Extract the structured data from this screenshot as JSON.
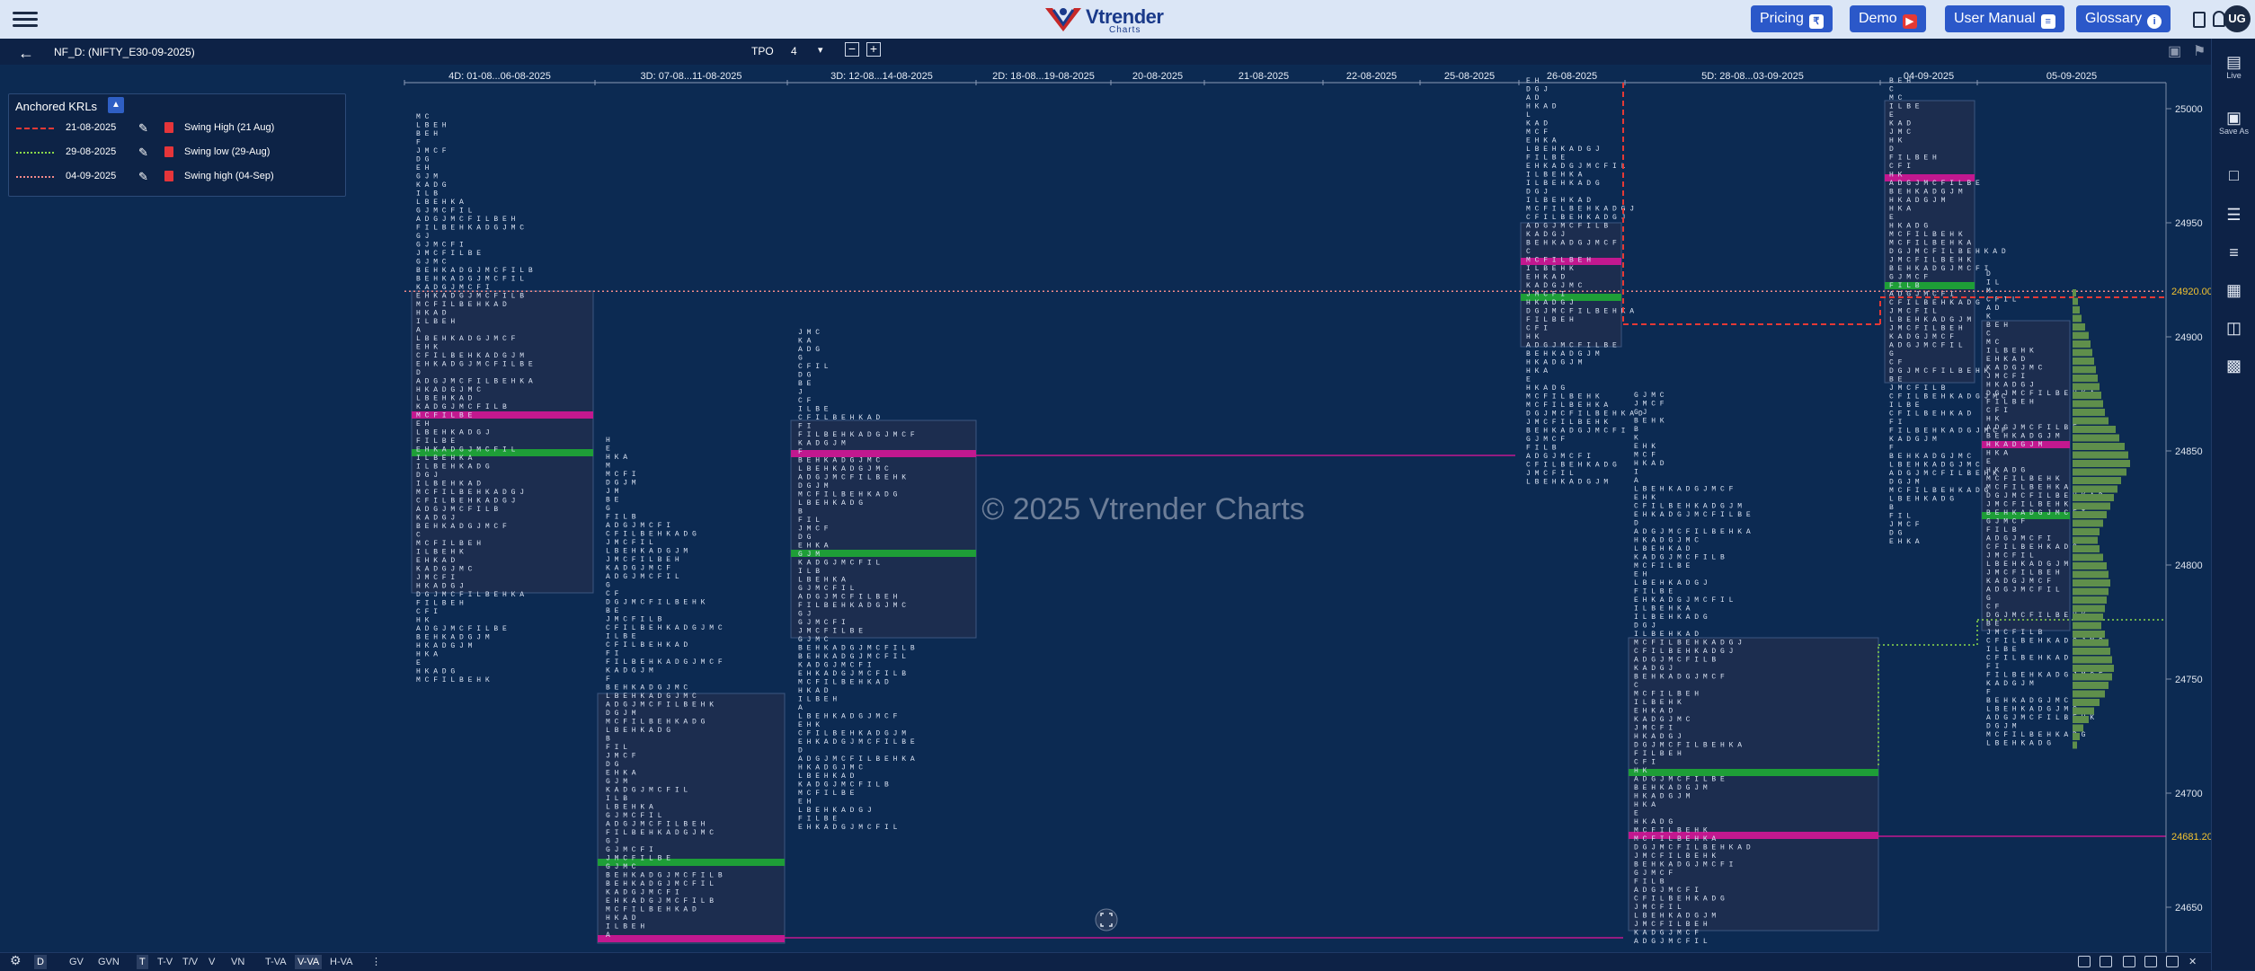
{
  "topbar": {
    "brand_name": "Vtrender",
    "brand_sub": "Charts",
    "buttons": [
      {
        "label": "Pricing",
        "icon": "rupee-icon",
        "glyph": "₹"
      },
      {
        "label": "Demo",
        "icon": "youtube-icon",
        "glyph": "▶"
      },
      {
        "label": "User Manual",
        "icon": "document-icon",
        "glyph": "≡"
      },
      {
        "label": "Glossary",
        "icon": "info-icon",
        "glyph": "i"
      }
    ],
    "avatar": "UG"
  },
  "subbar": {
    "symbol": "NF_D: (NIFTY_E30-09-2025)",
    "tpo_label": "TPO",
    "tpo_value": "4"
  },
  "right_panel": {
    "items": [
      {
        "label": "Live",
        "icon": "live-icon"
      },
      {
        "label": "Save As",
        "icon": "save-as-icon"
      },
      {
        "label": "",
        "icon": "square-icon"
      },
      {
        "label": "",
        "icon": "list-icon"
      },
      {
        "label": "",
        "icon": "lines-icon"
      },
      {
        "label": "",
        "icon": "grid-icon"
      },
      {
        "label": "",
        "icon": "columns-icon"
      },
      {
        "label": "",
        "icon": "apps-icon"
      }
    ]
  },
  "chart": {
    "watermark": "© 2025 Vtrender Charts",
    "sessions": [
      "4D: 01-08...06-08-2025",
      "3D: 07-08...11-08-2025",
      "3D: 12-08...14-08-2025",
      "2D: 18-08...19-08-2025",
      "20-08-2025",
      "21-08-2025",
      "22-08-2025",
      "25-08-2025",
      "26-08-2025",
      "5D: 28-08...03-09-2025",
      "04-09-2025",
      "05-09-2025"
    ],
    "price_axis": [
      "25000",
      "24950",
      "24900",
      "24850",
      "24800",
      "24750",
      "24700",
      "24650"
    ],
    "price_tags": [
      {
        "value": "24920.00",
        "color": "#f2c230"
      },
      {
        "value": "24681.20",
        "color": "#f2c230"
      }
    ],
    "anchored_krls": {
      "title": "Anchored KRLs",
      "rows": [
        {
          "date": "21-08-2025",
          "label": "Swing High (21 Aug)",
          "color": "#e53935",
          "style": "dashed"
        },
        {
          "date": "29-08-2025",
          "label": "Swing low (29-Aug)",
          "color": "#8bd94a",
          "style": "dotted"
        },
        {
          "date": "04-09-2025",
          "label": "Swing high (04-Sep)",
          "color": "#f28a8a",
          "style": "dotted"
        }
      ]
    },
    "colors": {
      "background": "#0c2a52",
      "value_area": "#1c2d4f",
      "poc": "#c2188f",
      "ib": "#1e9e37",
      "profile_bar": "#5f8f4b"
    }
  },
  "bottombar": {
    "items": [
      "D",
      "GV",
      "GVN",
      "T",
      "T-V",
      "T/V",
      "V",
      "VN",
      "T-VA",
      "V-VA",
      "H-VA"
    ],
    "active": [
      "D",
      "T",
      "V-VA"
    ]
  }
}
